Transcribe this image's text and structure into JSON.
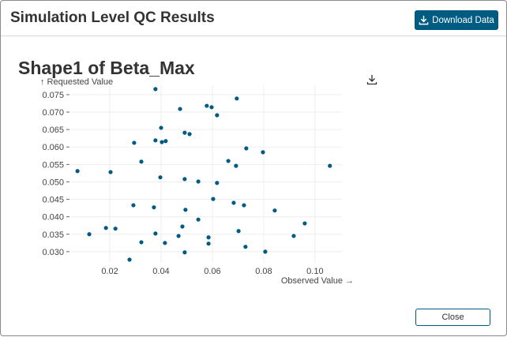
{
  "dialog": {
    "title": "Simulation Level QC Results",
    "download_label": "Download Data",
    "close_label": "Close"
  },
  "chart_data": {
    "type": "scatter",
    "title": "Shape1 of Beta_Max",
    "xlabel": "Observed Value →",
    "ylabel": "↑ Requested Value",
    "xlim": [
      0.0046,
      0.1105
    ],
    "ylim": [
      0.0268,
      0.0777
    ],
    "xticks": [
      "0.02",
      "0.04",
      "0.06",
      "0.08",
      "0.10"
    ],
    "yticks": [
      "0.030",
      "0.035",
      "0.040",
      "0.045",
      "0.050",
      "0.055",
      "0.060",
      "0.065",
      "0.070",
      "0.075"
    ],
    "grid": true,
    "color": "#005b82",
    "points": [
      [
        0.0378,
        0.0766
      ],
      [
        0.0474,
        0.0709
      ],
      [
        0.0578,
        0.0718
      ],
      [
        0.0597,
        0.0714
      ],
      [
        0.0618,
        0.0691
      ],
      [
        0.0695,
        0.0739
      ],
      [
        0.04,
        0.0655
      ],
      [
        0.0295,
        0.0612
      ],
      [
        0.0378,
        0.0619
      ],
      [
        0.0403,
        0.0614
      ],
      [
        0.0418,
        0.0617
      ],
      [
        0.0492,
        0.0641
      ],
      [
        0.0511,
        0.0637
      ],
      [
        0.0323,
        0.0558
      ],
      [
        0.0732,
        0.0596
      ],
      [
        0.0797,
        0.0585
      ],
      [
        0.0662,
        0.056
      ],
      [
        0.0692,
        0.0546
      ],
      [
        0.0074,
        0.0531
      ],
      [
        0.0203,
        0.0528
      ],
      [
        0.0397,
        0.0513
      ],
      [
        0.0492,
        0.0508
      ],
      [
        0.0545,
        0.0501
      ],
      [
        0.0618,
        0.0497
      ],
      [
        0.1058,
        0.0546
      ],
      [
        0.0292,
        0.0433
      ],
      [
        0.0372,
        0.0427
      ],
      [
        0.0495,
        0.042
      ],
      [
        0.0603,
        0.0451
      ],
      [
        0.0683,
        0.044
      ],
      [
        0.0723,
        0.0433
      ],
      [
        0.0843,
        0.0418
      ],
      [
        0.0545,
        0.0392
      ],
      [
        0.0483,
        0.0372
      ],
      [
        0.096,
        0.0381
      ],
      [
        0.0185,
        0.0368
      ],
      [
        0.0222,
        0.0366
      ],
      [
        0.012,
        0.035
      ],
      [
        0.0378,
        0.0352
      ],
      [
        0.0468,
        0.0345
      ],
      [
        0.0702,
        0.0359
      ],
      [
        0.0917,
        0.0345
      ],
      [
        0.0323,
        0.0327
      ],
      [
        0.0415,
        0.0325
      ],
      [
        0.0585,
        0.0341
      ],
      [
        0.0585,
        0.0323
      ],
      [
        0.0729,
        0.0314
      ],
      [
        0.0492,
        0.0298
      ],
      [
        0.0806,
        0.03
      ],
      [
        0.0277,
        0.0277
      ]
    ]
  }
}
